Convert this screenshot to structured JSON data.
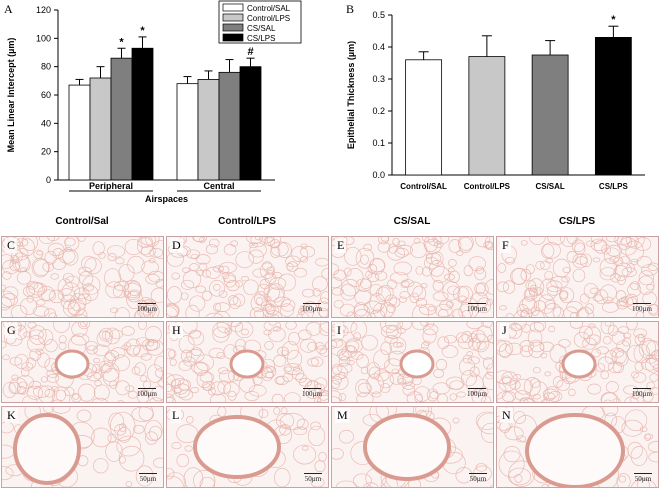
{
  "chart_data": [
    {
      "panel": "A",
      "type": "bar",
      "ylabel": "Mean Linear Intercept (µm)",
      "xlabel": "Airspaces",
      "ylim": [
        0,
        120
      ],
      "yticks": [
        "0",
        "20",
        "40",
        "60",
        "80",
        "100",
        "120"
      ],
      "categories": [
        "Peripheral",
        "Central"
      ],
      "legend_position": "top-right",
      "series": [
        {
          "name": "Control/SAL",
          "color": "#ffffff",
          "values": [
            67,
            68
          ],
          "errors": [
            4,
            5
          ],
          "annotations": [
            "",
            ""
          ]
        },
        {
          "name": "Control/LPS",
          "color": "#c8c8c8",
          "values": [
            72,
            71
          ],
          "errors": [
            8,
            6
          ],
          "annotations": [
            "",
            ""
          ]
        },
        {
          "name": "CS/SAL",
          "color": "#7f7f7f",
          "values": [
            86,
            76
          ],
          "errors": [
            7,
            9
          ],
          "annotations": [
            "*",
            ""
          ]
        },
        {
          "name": "CS/LPS",
          "color": "#000000",
          "values": [
            93,
            80
          ],
          "errors": [
            8,
            6
          ],
          "annotations": [
            "*",
            "#"
          ]
        }
      ]
    },
    {
      "panel": "B",
      "type": "bar",
      "ylabel": "Epithelial Thickness (µm)",
      "ylim": [
        0,
        0.5
      ],
      "yticks": [
        "0.0",
        "0.1",
        "0.2",
        "0.3",
        "0.4",
        "0.5"
      ],
      "categories": [
        "Control/SAL",
        "Control/LPS",
        "CS/SAL",
        "CS/LPS"
      ],
      "colors": [
        "#ffffff",
        "#c8c8c8",
        "#7f7f7f",
        "#000000"
      ],
      "values": [
        0.36,
        0.37,
        0.375,
        0.43
      ],
      "errors": [
        0.025,
        0.065,
        0.045,
        0.035
      ],
      "annotations": [
        "",
        "",
        "",
        "*"
      ]
    }
  ],
  "micrographs": {
    "column_headers": [
      "Control/Sal",
      "Control/LPS",
      "CS/SAL",
      "CS/LPS"
    ],
    "rows": [
      {
        "letters": [
          "C",
          "D",
          "E",
          "F"
        ],
        "scale_label": "100µm"
      },
      {
        "letters": [
          "G",
          "H",
          "I",
          "J"
        ],
        "scale_label": "100µm"
      },
      {
        "letters": [
          "K",
          "L",
          "M",
          "N"
        ],
        "scale_label": "50µm"
      }
    ]
  },
  "colors": {
    "tissue_stain": "#e8b5ad",
    "tissue_background": "#fbf3f1",
    "airway_wall": "#d99a90"
  }
}
